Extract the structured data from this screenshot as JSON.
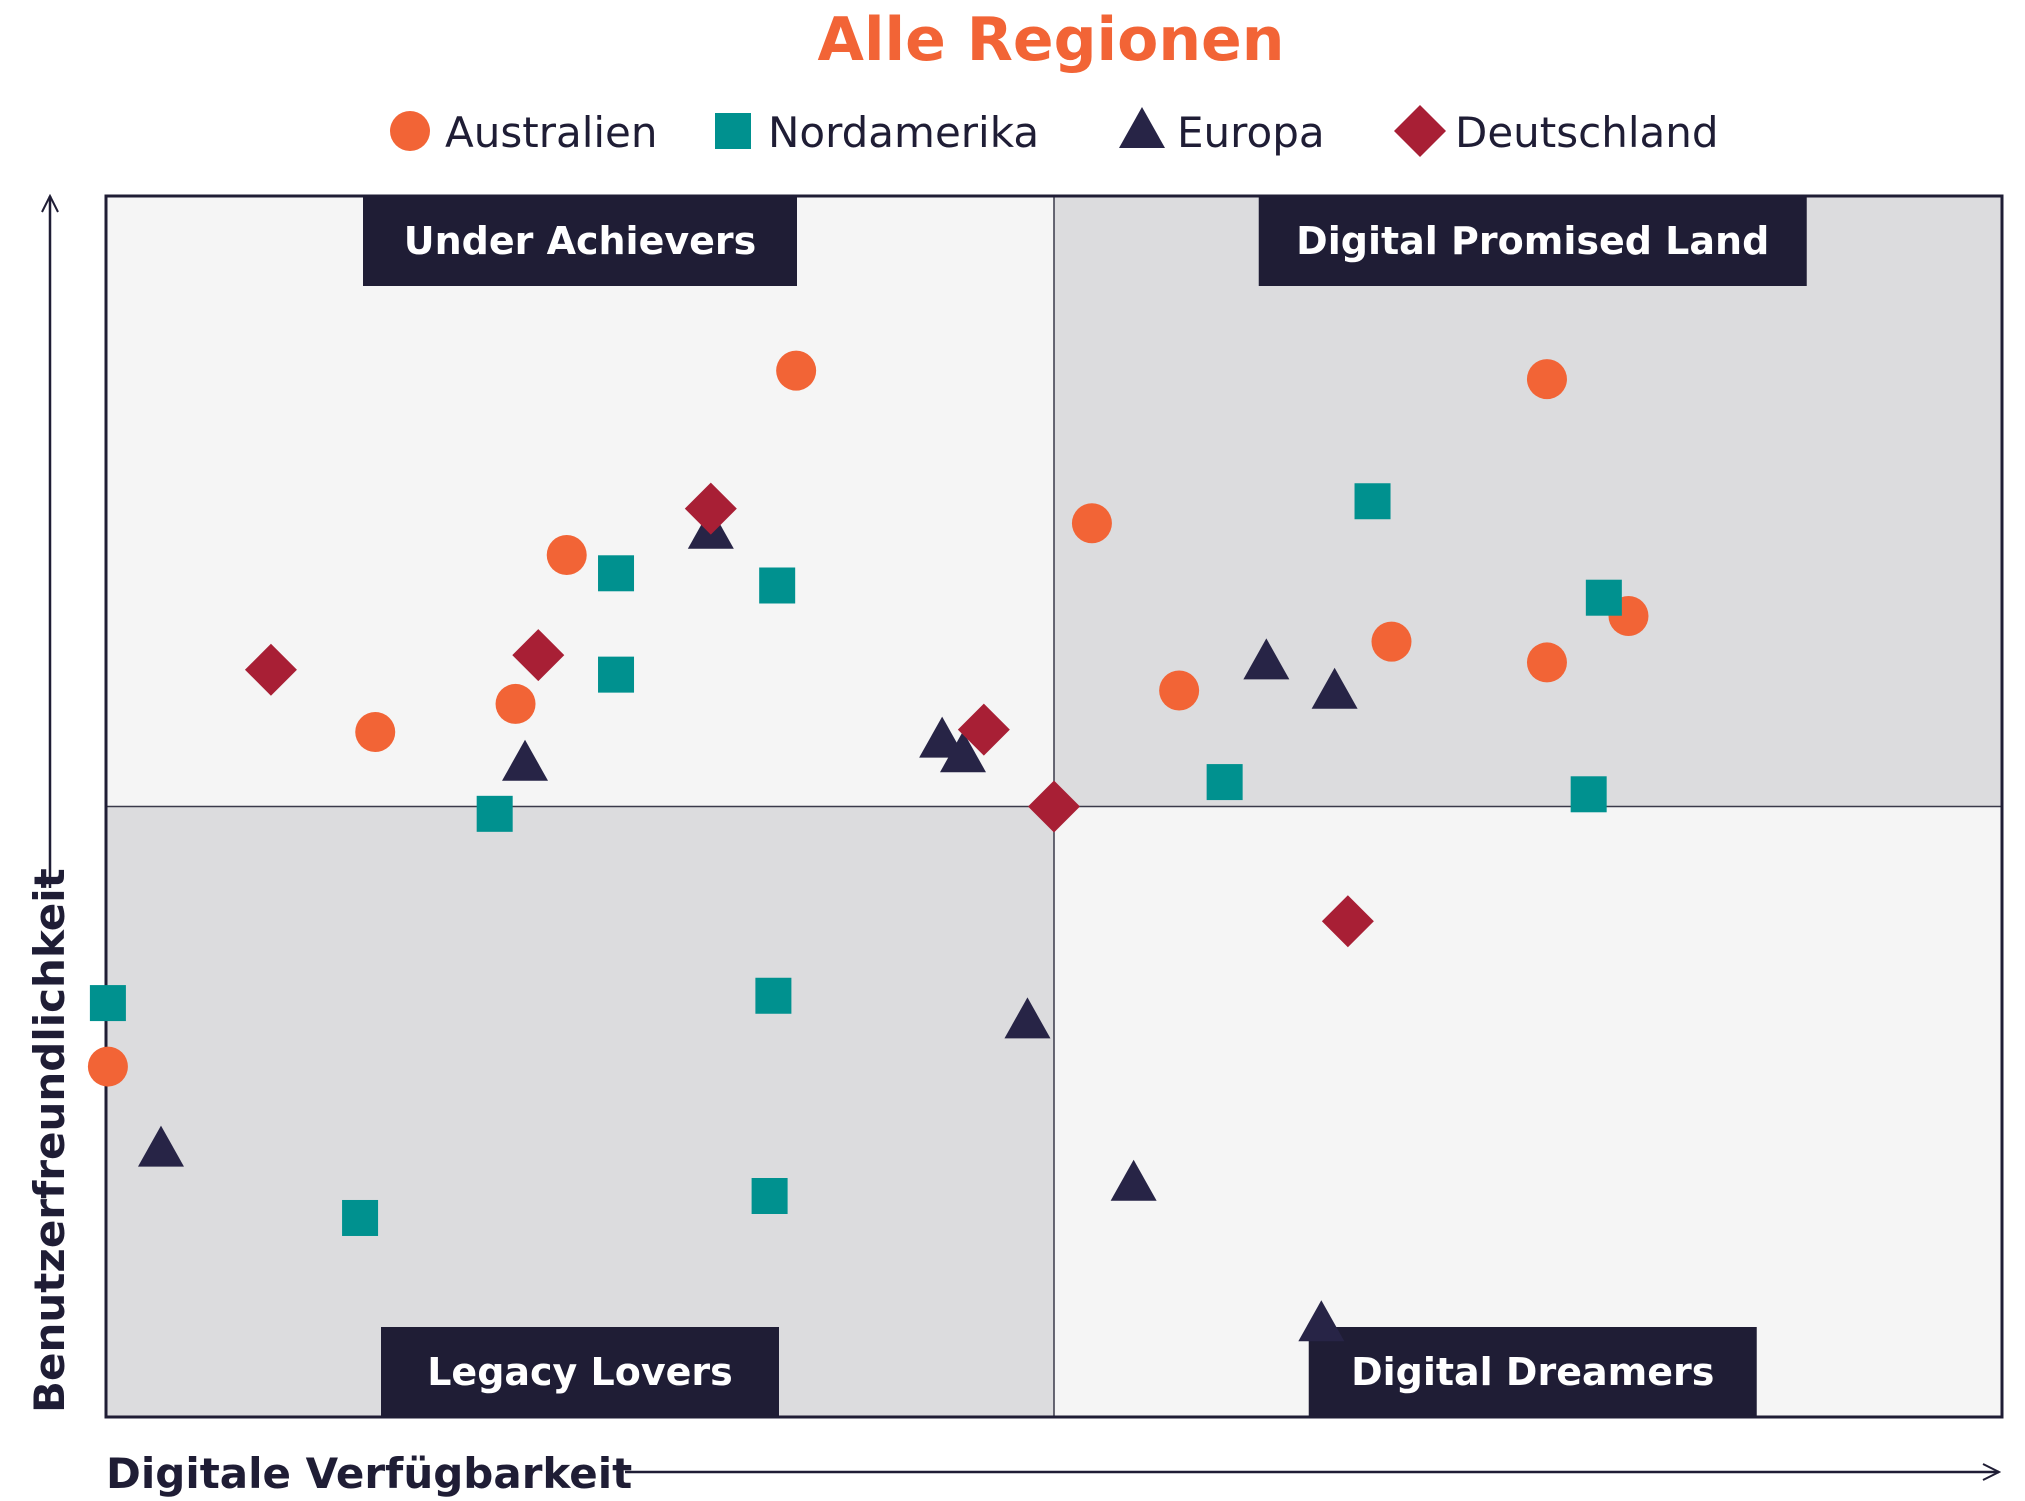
{
  "chart_data": {
    "type": "scatter",
    "title": "Alle Regionen",
    "xlabel": "Digitale Verfügbarkeit",
    "ylabel": "Benutzerfreundlichkeit",
    "xlim": [
      0,
      100
    ],
    "ylim": [
      0,
      100
    ],
    "grid": false,
    "legend_position": "top",
    "quadrants": {
      "top_left": "Under Achievers",
      "top_right": "Digital Promised Land",
      "bottom_left": "Legacy Lovers",
      "bottom_right": "Digital Dreamers"
    },
    "colors": {
      "title": "#f26436",
      "quad_light": "#f5f5f5",
      "quad_dark": "#dcdcde",
      "label_bg": "#1f1d35",
      "border": "#1f1d35"
    },
    "series": [
      {
        "name": "Australien",
        "marker": "circle",
        "color": "#f26436",
        "points": [
          [
            36.4,
            85.7
          ],
          [
            24.3,
            70.6
          ],
          [
            21.6,
            58.4
          ],
          [
            14.2,
            56.1
          ],
          [
            0.1,
            28.7
          ],
          [
            52.0,
            73.2
          ],
          [
            56.6,
            59.5
          ],
          [
            67.8,
            63.5
          ],
          [
            76.0,
            85.0
          ],
          [
            76.0,
            61.8
          ],
          [
            80.3,
            65.6
          ]
        ]
      },
      {
        "name": "Nordamerika",
        "marker": "square",
        "color": "#00918f",
        "points": [
          [
            26.9,
            69.1
          ],
          [
            35.4,
            68.1
          ],
          [
            26.9,
            60.8
          ],
          [
            20.5,
            49.4
          ],
          [
            0.1,
            33.9
          ],
          [
            35.2,
            34.5
          ],
          [
            13.4,
            16.3
          ],
          [
            35.0,
            18.1
          ],
          [
            66.8,
            75.0
          ],
          [
            79.0,
            67.1
          ],
          [
            59.0,
            52.0
          ],
          [
            78.2,
            51.0
          ]
        ]
      },
      {
        "name": "Europa",
        "marker": "triangle",
        "color": "#272446",
        "points": [
          [
            31.9,
            72.5
          ],
          [
            22.1,
            53.5
          ],
          [
            44.1,
            55.4
          ],
          [
            45.2,
            54.2
          ],
          [
            2.9,
            21.9
          ],
          [
            48.6,
            32.4
          ],
          [
            54.2,
            19.1
          ],
          [
            61.2,
            61.8
          ],
          [
            64.8,
            59.4
          ],
          [
            64.1,
            7.6
          ]
        ]
      },
      {
        "name": "Deutschland",
        "marker": "diamond",
        "color": "#a81f35",
        "points": [
          [
            31.9,
            74.4
          ],
          [
            8.7,
            61.2
          ],
          [
            22.8,
            62.4
          ],
          [
            46.3,
            56.3
          ],
          [
            50.0,
            50.0
          ],
          [
            65.5,
            40.6
          ]
        ]
      }
    ]
  }
}
